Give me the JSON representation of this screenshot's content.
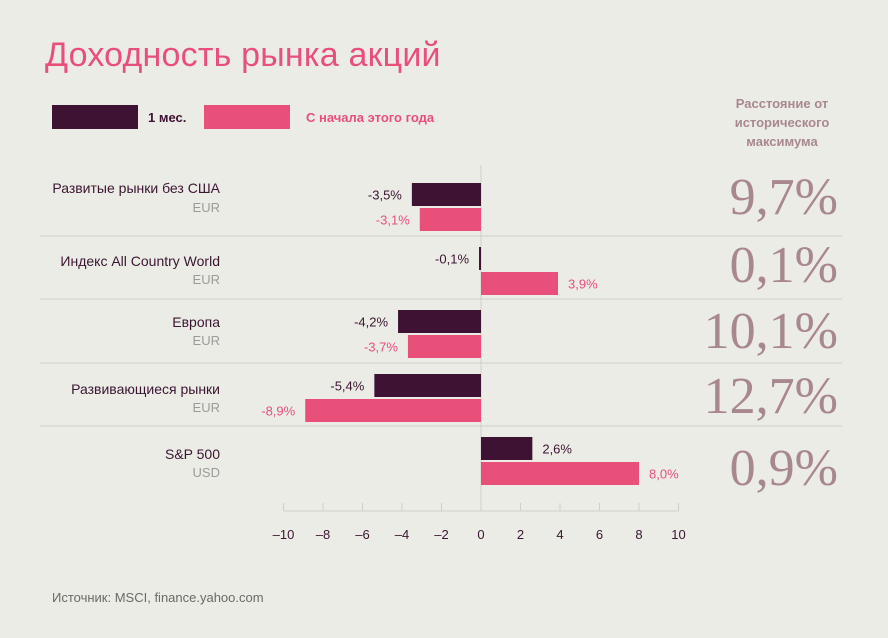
{
  "title": "Доходность рынка акций",
  "legend": {
    "series1": "1 мес.",
    "series2": "С начала этого года"
  },
  "distance_header": "Расстояние от исторического максимума",
  "source": "Источник: MSCI, finance.yahoo.com",
  "colors": {
    "month": "#3d1232",
    "ytd": "#e8507a",
    "distance": "#a8888e",
    "background": "#ecece7"
  },
  "chart_data": {
    "type": "bar",
    "orientation": "horizontal",
    "title": "Доходность рынка акций",
    "categories": [
      {
        "name": "Развитые рынки без США",
        "currency": "EUR"
      },
      {
        "name": "Индекс All Country World",
        "currency": "EUR"
      },
      {
        "name": "Европа",
        "currency": "EUR"
      },
      {
        "name": "Развивающиеся рынки",
        "currency": "EUR"
      },
      {
        "name": "S&P 500",
        "currency": "USD"
      }
    ],
    "series": [
      {
        "name": "1 мес.",
        "values": [
          -3.5,
          -0.1,
          -4.2,
          -5.4,
          2.6
        ],
        "labels": [
          "-3,5%",
          "-0,1%",
          "-4,2%",
          "-5,4%",
          "2,6%"
        ]
      },
      {
        "name": "С начала этого года",
        "values": [
          -3.1,
          3.9,
          -3.7,
          -8.9,
          8.0
        ],
        "labels": [
          "-3,1%",
          "3,9%",
          "-3,7%",
          "-8,9%",
          "8,0%"
        ]
      }
    ],
    "distance_from_max": [
      "9,7%",
      "0,1%",
      "10,1%",
      "12,7%",
      "0,9%"
    ],
    "xlim": [
      -10,
      10
    ],
    "xticks": [
      -10,
      -8,
      -6,
      -4,
      -2,
      0,
      2,
      4,
      6,
      8,
      10
    ],
    "xtick_labels": [
      "–10",
      "–8",
      "–6",
      "–4",
      "–2",
      "0",
      "2",
      "4",
      "6",
      "8",
      "10"
    ],
    "grid": false,
    "legend_position": "top-left"
  }
}
